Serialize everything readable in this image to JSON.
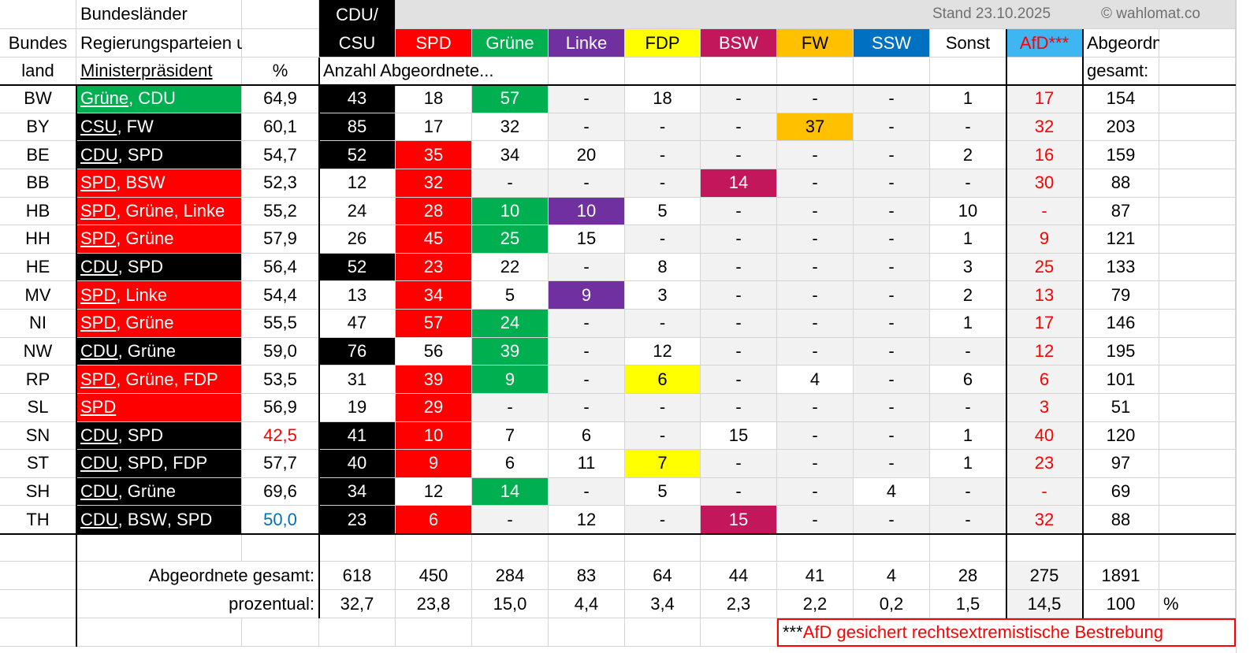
{
  "header": {
    "bundeslaender": "Bundesländer",
    "regierung": "Regierungsparteien und",
    "mp": "Ministerpräsident",
    "land1": "Bundes",
    "land2": "land",
    "pct": "%",
    "stand": "Stand 23.10.2025",
    "copyright": "© wahlomat.co",
    "anzahl": "Anzahl Abgeordnete...",
    "abg1": "Abgeordnete",
    "abg2": "gesamt:"
  },
  "parties": [
    {
      "lines": [
        "CDU/",
        "CSU"
      ],
      "color": "#000000",
      "text_color": "#ffffff"
    },
    {
      "lines": [
        "SPD"
      ],
      "color": "#ff0000",
      "text_color": "#ffffff"
    },
    {
      "lines": [
        "Grüne"
      ],
      "color": "#00b050",
      "text_color": "#ffffff"
    },
    {
      "lines": [
        "Linke"
      ],
      "color": "#7030a0",
      "text_color": "#ffffff"
    },
    {
      "lines": [
        "FDP"
      ],
      "color": "#ffff00",
      "text_color": "#000000"
    },
    {
      "lines": [
        "BSW"
      ],
      "color": "#c2185b",
      "text_color": "#ffffff"
    },
    {
      "lines": [
        "FW"
      ],
      "color": "#ffc000",
      "text_color": "#000000"
    },
    {
      "lines": [
        "SSW"
      ],
      "color": "#0070c0",
      "text_color": "#ffffff"
    },
    {
      "lines": [
        "Sonst"
      ],
      "color": "#ffffff",
      "text_color": "#000000"
    },
    {
      "lines": [
        "AfD***"
      ],
      "color": "#3db6f2",
      "text_color": "#ff0000",
      "column_color": "#f2f2f2",
      "column_text_color": "#ff0000"
    }
  ],
  "rows": [
    {
      "land": "BW",
      "coalition": [
        "Grüne",
        "CDU"
      ],
      "pct": "64,9",
      "seats": [
        "43",
        "18",
        "57",
        "-",
        "18",
        "-",
        "-",
        "-",
        "1",
        "17"
      ],
      "total": "154"
    },
    {
      "land": "BY",
      "coalition": [
        "CSU",
        "FW"
      ],
      "pct": "60,1",
      "seats": [
        "85",
        "17",
        "32",
        "-",
        "-",
        "-",
        "37",
        "-",
        "-",
        "32"
      ],
      "total": "203"
    },
    {
      "land": "BE",
      "coalition": [
        "CDU",
        "SPD"
      ],
      "pct": "54,7",
      "seats": [
        "52",
        "35",
        "34",
        "20",
        "-",
        "-",
        "-",
        "-",
        "2",
        "16"
      ],
      "total": "159"
    },
    {
      "land": "BB",
      "coalition": [
        "SPD",
        "BSW"
      ],
      "pct": "52,3",
      "seats": [
        "12",
        "32",
        "-",
        "-",
        "-",
        "14",
        "-",
        "-",
        "-",
        "30"
      ],
      "total": "88"
    },
    {
      "land": "HB",
      "coalition": [
        "SPD",
        "Grüne",
        "Linke"
      ],
      "pct": "55,2",
      "seats": [
        "24",
        "28",
        "10",
        "10",
        "5",
        "-",
        "-",
        "-",
        "10",
        "-"
      ],
      "total": "87"
    },
    {
      "land": "HH",
      "coalition": [
        "SPD",
        "Grüne"
      ],
      "pct": "57,9",
      "seats": [
        "26",
        "45",
        "25",
        "15",
        "-",
        "-",
        "-",
        "-",
        "1",
        "9"
      ],
      "total": "121"
    },
    {
      "land": "HE",
      "coalition": [
        "CDU",
        "SPD"
      ],
      "pct": "56,4",
      "seats": [
        "52",
        "23",
        "22",
        "-",
        "8",
        "-",
        "-",
        "-",
        "3",
        "25"
      ],
      "total": "133"
    },
    {
      "land": "MV",
      "coalition": [
        "SPD",
        "Linke"
      ],
      "pct": "54,4",
      "seats": [
        "13",
        "34",
        "5",
        "9",
        "3",
        "-",
        "-",
        "-",
        "2",
        "13"
      ],
      "total": "79"
    },
    {
      "land": "NI",
      "coalition": [
        "SPD",
        "Grüne"
      ],
      "pct": "55,5",
      "seats": [
        "47",
        "57",
        "24",
        "-",
        "-",
        "-",
        "-",
        "-",
        "1",
        "17"
      ],
      "total": "146"
    },
    {
      "land": "NW",
      "coalition": [
        "CDU",
        "Grüne"
      ],
      "pct": "59,0",
      "seats": [
        "76",
        "56",
        "39",
        "-",
        "12",
        "-",
        "-",
        "-",
        "-",
        "12"
      ],
      "total": "195"
    },
    {
      "land": "RP",
      "coalition": [
        "SPD",
        "Grüne",
        "FDP"
      ],
      "pct": "53,5",
      "seats": [
        "31",
        "39",
        "9",
        "-",
        "6",
        "-",
        "4",
        "-",
        "6",
        "6"
      ],
      "total": "101"
    },
    {
      "land": "SL",
      "coalition": [
        "SPD"
      ],
      "pct": "56,9",
      "seats": [
        "19",
        "29",
        "-",
        "-",
        "-",
        "-",
        "-",
        "-",
        "-",
        "3"
      ],
      "total": "51"
    },
    {
      "land": "SN",
      "coalition": [
        "CDU",
        "SPD"
      ],
      "pct": "42,5",
      "pct_color": "#ff0000",
      "seats": [
        "41",
        "10",
        "7",
        "6",
        "-",
        "15",
        "-",
        "-",
        "1",
        "40"
      ],
      "total": "120"
    },
    {
      "land": "ST",
      "coalition": [
        "CDU",
        "SPD",
        "FDP"
      ],
      "pct": "57,7",
      "seats": [
        "40",
        "9",
        "6",
        "11",
        "7",
        "-",
        "-",
        "-",
        "1",
        "23"
      ],
      "total": "97"
    },
    {
      "land": "SH",
      "coalition": [
        "CDU",
        "Grüne"
      ],
      "pct": "69,6",
      "seats": [
        "34",
        "12",
        "14",
        "-",
        "5",
        "-",
        "-",
        "4",
        "-",
        "-"
      ],
      "total": "69"
    },
    {
      "land": "TH",
      "coalition": [
        "CDU",
        "BSW",
        "SPD"
      ],
      "pct": "50,0",
      "pct_color": "#0070c0",
      "seats": [
        "23",
        "6",
        "-",
        "12",
        "-",
        "15",
        "-",
        "-",
        "-",
        "32"
      ],
      "total": "88"
    }
  ],
  "totals": {
    "label": "Abgeordnete gesamt:",
    "values": [
      "618",
      "450",
      "284",
      "83",
      "64",
      "44",
      "41",
      "4",
      "28",
      "275"
    ],
    "total": "1891"
  },
  "percent": {
    "label": "prozentual:",
    "values": [
      "32,7",
      "23,8",
      "15,0",
      "4,4",
      "3,4",
      "2,3",
      "2,2",
      "0,2",
      "1,5",
      "14,5"
    ],
    "total": "100",
    "unit": "%"
  },
  "footnote": {
    "mark": "***",
    "text": "AfD gesichert rechtsextremistische Bestrebung"
  }
}
